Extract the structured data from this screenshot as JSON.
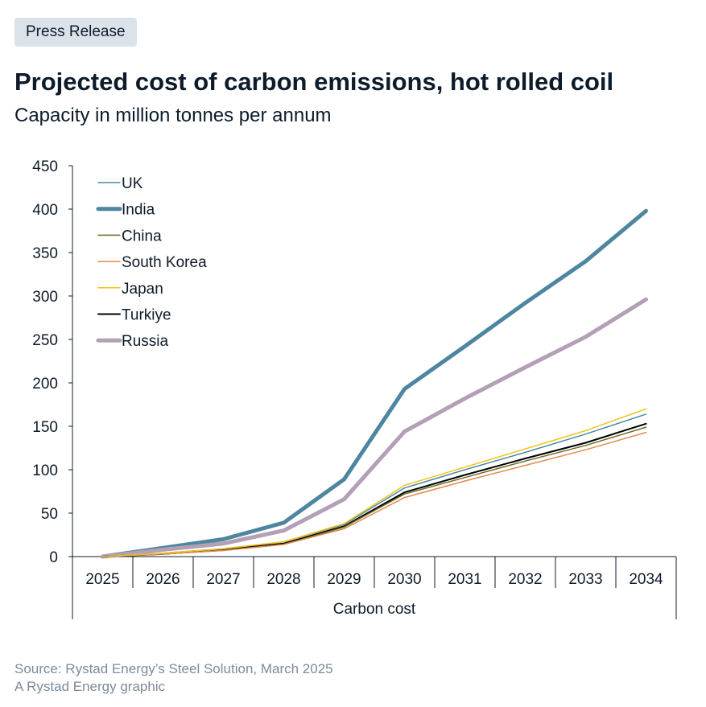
{
  "header": {
    "badge": "Press Release",
    "title": "Projected cost of carbon emissions, hot rolled coil",
    "subtitle": "Capacity in million tonnes per annum"
  },
  "footer": {
    "source": "Source: Rystad Energy’s Steel Solution, March 2025",
    "credit": "A Rystad Energy graphic"
  },
  "chart_data": {
    "type": "line",
    "title": "Projected cost of carbon emissions, hot rolled coil",
    "subtitle": "Capacity in million tonnes per annum",
    "xlabel": "Carbon cost",
    "ylabel": "",
    "categories": [
      "2025",
      "2026",
      "2027",
      "2028",
      "2029",
      "2030",
      "2031",
      "2032",
      "2033",
      "2034"
    ],
    "ylim": [
      0,
      450
    ],
    "yticks": [
      0,
      50,
      100,
      150,
      200,
      250,
      300,
      350,
      400,
      450
    ],
    "grid": false,
    "legend_position": "top-left",
    "series": [
      {
        "name": "UK",
        "color": "#4a8aa8",
        "width": 1.5,
        "values": [
          0,
          4,
          9,
          17,
          37,
          79,
          100,
          120,
          141,
          164
        ]
      },
      {
        "name": "India",
        "color": "#4e86a0",
        "width": 5,
        "values": [
          0,
          10,
          20,
          39,
          89,
          193,
          242,
          292,
          340,
          398
        ]
      },
      {
        "name": "China",
        "color": "#6b6d2a",
        "width": 1.5,
        "values": [
          0,
          3,
          7,
          14,
          34,
          72,
          91,
          110,
          128,
          149
        ]
      },
      {
        "name": "South Korea",
        "color": "#e08a4e",
        "width": 1.5,
        "values": [
          0,
          3,
          7,
          14,
          32,
          68,
          87,
          105,
          123,
          143
        ]
      },
      {
        "name": "Japan",
        "color": "#f2c318",
        "width": 1.5,
        "values": [
          0,
          4,
          9,
          17,
          38,
          82,
          103,
          124,
          145,
          170
        ]
      },
      {
        "name": "Turkiye",
        "color": "#000000",
        "width": 2,
        "values": [
          0,
          3,
          8,
          15,
          35,
          74,
          94,
          113,
          131,
          153
        ]
      },
      {
        "name": "Russia",
        "color": "#b39fb6",
        "width": 5,
        "values": [
          0,
          8,
          15,
          30,
          66,
          144,
          182,
          218,
          253,
          296
        ]
      }
    ]
  }
}
